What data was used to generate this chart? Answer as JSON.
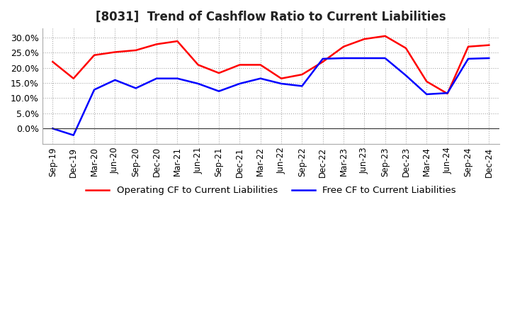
{
  "title": "[8031]  Trend of Cashflow Ratio to Current Liabilities",
  "x_labels": [
    "Sep-19",
    "Dec-19",
    "Mar-20",
    "Jun-20",
    "Sep-20",
    "Dec-20",
    "Mar-21",
    "Jun-21",
    "Sep-21",
    "Dec-21",
    "Mar-22",
    "Jun-22",
    "Sep-22",
    "Dec-22",
    "Mar-23",
    "Jun-23",
    "Sep-23",
    "Dec-23",
    "Mar-24",
    "Jun-24",
    "Sep-24",
    "Dec-24"
  ],
  "operating_cf": [
    0.22,
    0.165,
    0.242,
    0.252,
    0.258,
    0.278,
    0.288,
    0.21,
    0.183,
    0.21,
    0.21,
    0.165,
    0.178,
    0.22,
    0.27,
    0.295,
    0.305,
    0.265,
    0.155,
    0.115,
    0.27,
    0.275
  ],
  "free_cf": [
    0.0,
    -0.022,
    0.128,
    0.16,
    0.133,
    0.165,
    0.165,
    0.148,
    0.123,
    0.148,
    0.165,
    0.148,
    0.14,
    0.23,
    0.232,
    0.232,
    0.232,
    0.175,
    0.113,
    0.117,
    0.23,
    0.232
  ],
  "ylim": [
    -0.05,
    0.33
  ],
  "yticks": [
    0.0,
    0.05,
    0.1,
    0.15,
    0.2,
    0.25,
    0.3
  ],
  "operating_color": "#ff0000",
  "free_color": "#0000ff",
  "grid_color": "#aaaaaa",
  "background_color": "#ffffff",
  "title_fontsize": 12,
  "legend_labels": [
    "Operating CF to Current Liabilities",
    "Free CF to Current Liabilities"
  ]
}
